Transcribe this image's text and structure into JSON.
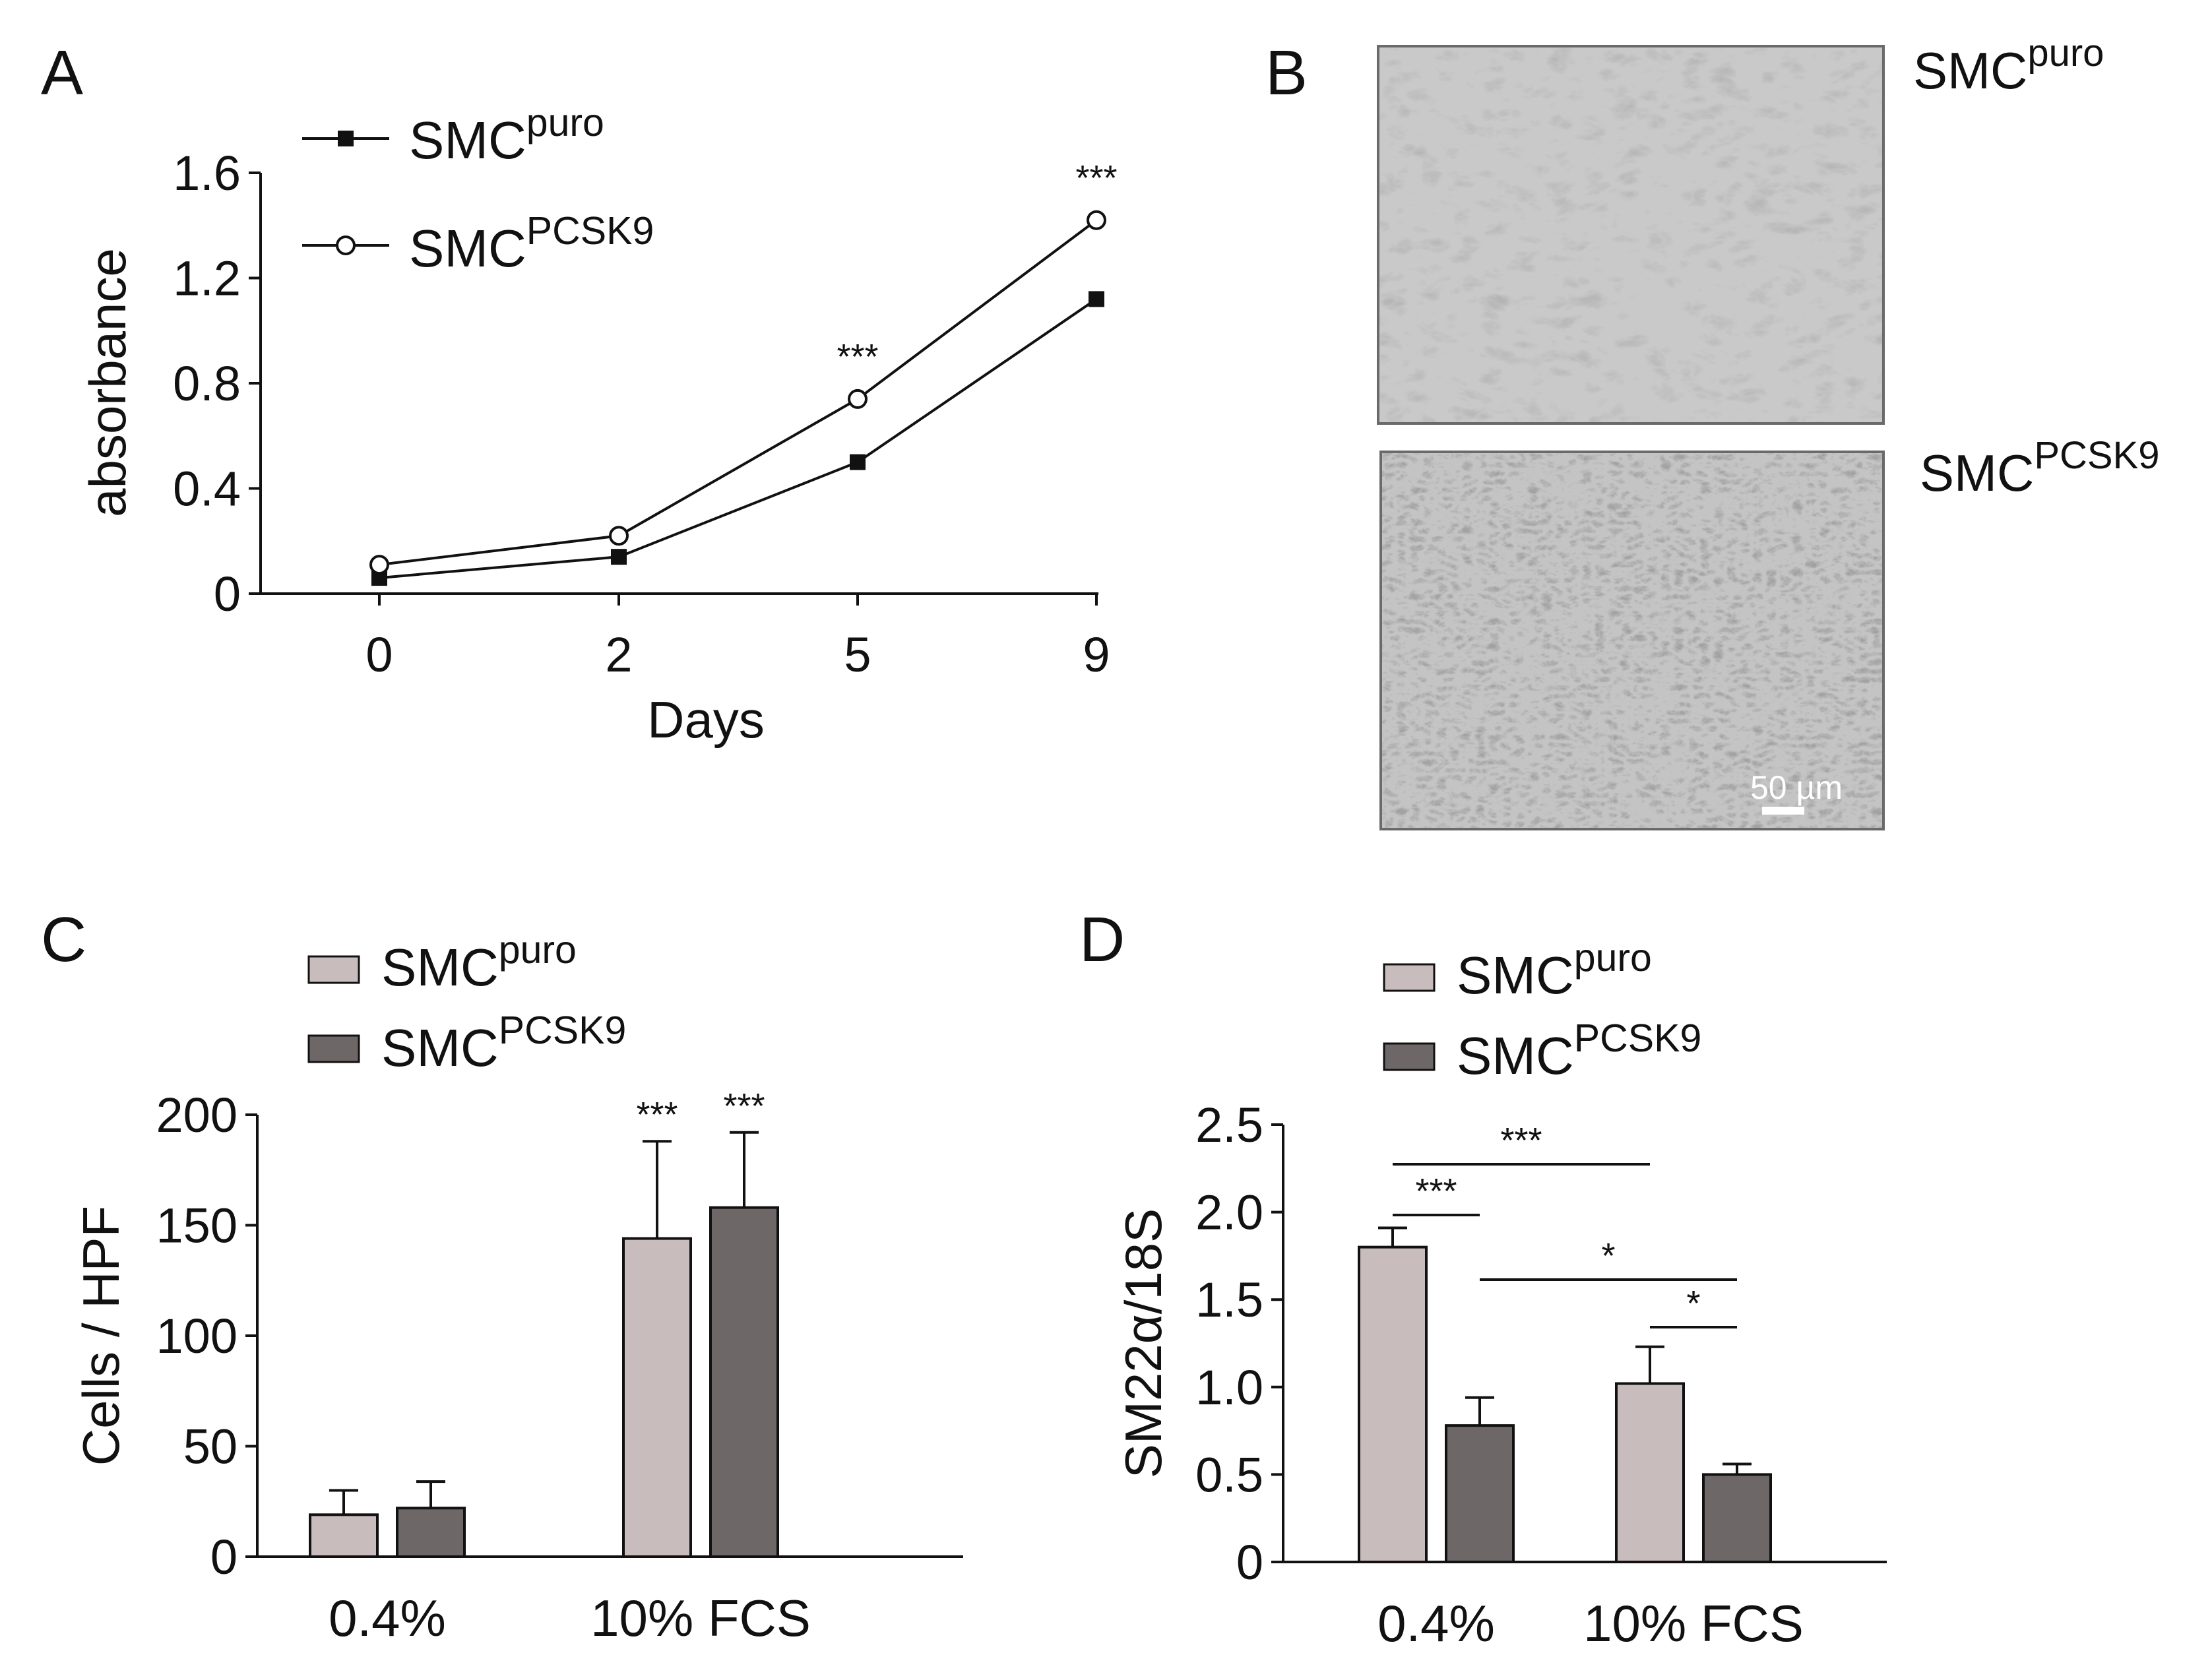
{
  "panels": {
    "A": "A",
    "B": "B",
    "C": "C",
    "D": "D"
  },
  "series_labels": {
    "puro_base": "SMC",
    "puro_sup": "puro",
    "pcsk9_base": "SMC",
    "pcsk9_sup": "PCSK9"
  },
  "panel_b": {
    "top_label_base": "SMC",
    "top_label_sup": "puro",
    "bottom_label_base": "SMC",
    "bottom_label_sup": "PCSK9",
    "scale_bar_label": "50 µm"
  },
  "colors": {
    "bar_light": "#c8bcbc",
    "bar_dark": "#6e6767",
    "axis": "#111111"
  },
  "chart_data": [
    {
      "panel": "A",
      "type": "line",
      "title": "",
      "xlabel": "Days",
      "ylabel": "absorbance",
      "categories": [
        "0",
        "2",
        "5",
        "9"
      ],
      "ylim": [
        0,
        1.6
      ],
      "yticks": [
        "0",
        "0.4",
        "0.8",
        "1.2",
        "1.6"
      ],
      "legend_position": "top-left",
      "series": [
        {
          "name": "SMCpuro",
          "marker": "filled-square",
          "values": [
            0.06,
            0.14,
            0.5,
            1.12
          ]
        },
        {
          "name": "SMCPCSK9",
          "marker": "open-circle",
          "values": [
            0.11,
            0.22,
            0.74,
            1.42
          ]
        }
      ],
      "annotations": [
        {
          "category": "5",
          "text": "***"
        },
        {
          "category": "9",
          "text": "***"
        }
      ]
    },
    {
      "panel": "C",
      "type": "bar",
      "title": "",
      "xlabel": "",
      "ylabel": "Cells / HPF",
      "categories": [
        "0.4%",
        "10% FCS"
      ],
      "ylim": [
        0,
        200
      ],
      "yticks": [
        "0",
        "50",
        "100",
        "150",
        "200"
      ],
      "legend_position": "top-left",
      "series": [
        {
          "name": "SMCpuro",
          "values": [
            19,
            144
          ],
          "errors": [
            11,
            44
          ]
        },
        {
          "name": "SMCPCSK9",
          "values": [
            22,
            158
          ],
          "errors": [
            12,
            34
          ]
        }
      ],
      "annotations": [
        {
          "category": "10% FCS",
          "series": 0,
          "text": "***"
        },
        {
          "category": "10% FCS",
          "series": 1,
          "text": "***"
        }
      ]
    },
    {
      "panel": "D",
      "type": "bar",
      "title": "",
      "xlabel": "",
      "ylabel": "SM22α/18S",
      "categories": [
        "0.4%",
        "10% FCS"
      ],
      "ylim": [
        0,
        2.5
      ],
      "yticks": [
        "0",
        "0.5",
        "1.0",
        "1.5",
        "2.0",
        "2.5"
      ],
      "legend_position": "top-left",
      "series": [
        {
          "name": "SMCpuro",
          "values": [
            1.8,
            1.02
          ],
          "errors": [
            0.11,
            0.21
          ]
        },
        {
          "name": "SMCPCSK9",
          "values": [
            0.78,
            0.5
          ],
          "errors": [
            0.16,
            0.06
          ]
        }
      ],
      "significance_brackets": [
        {
          "from": [
            0,
            0
          ],
          "to": [
            0,
            1
          ],
          "text": "***"
        },
        {
          "from": [
            0,
            0
          ],
          "to": [
            1,
            0
          ],
          "text": "***"
        },
        {
          "from": [
            0,
            1
          ],
          "to": [
            1,
            1
          ],
          "text": "*"
        },
        {
          "from": [
            1,
            0
          ],
          "to": [
            1,
            1
          ],
          "text": "*"
        }
      ]
    }
  ]
}
